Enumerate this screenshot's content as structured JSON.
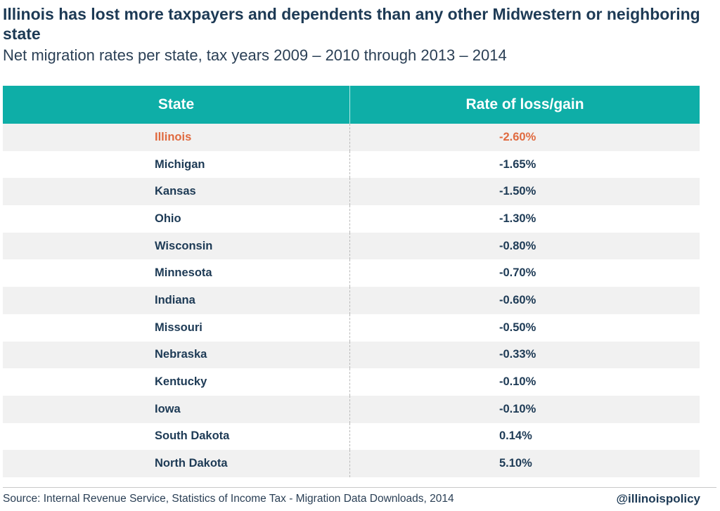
{
  "title": "Illinois has lost more taxpayers and dependents than any other Midwestern or neighboring state",
  "subtitle": "Net migration rates per state, tax years 2009 – 2010 through 2013 – 2014",
  "colors": {
    "header_bg": "#0eaea7",
    "highlight": "#e06a3f",
    "text": "#1d3a55"
  },
  "chart_data": {
    "type": "table",
    "title": "Illinois has lost more taxpayers and dependents than any other Midwestern or neighboring state",
    "subtitle": "Net migration rates per state, tax years 2009 – 2010 through 2013 – 2014",
    "columns": [
      "State",
      "Rate of loss/gain"
    ],
    "rows": [
      {
        "state": "Illinois",
        "rate": "-2.60%",
        "value": -2.6,
        "highlight": true
      },
      {
        "state": "Michigan",
        "rate": "-1.65%",
        "value": -1.65
      },
      {
        "state": "Kansas",
        "rate": "-1.50%",
        "value": -1.5
      },
      {
        "state": "Ohio",
        "rate": "-1.30%",
        "value": -1.3
      },
      {
        "state": "Wisconsin",
        "rate": "-0.80%",
        "value": -0.8
      },
      {
        "state": "Minnesota",
        "rate": "-0.70%",
        "value": -0.7
      },
      {
        "state": "Indiana",
        "rate": "-0.60%",
        "value": -0.6
      },
      {
        "state": "Missouri",
        "rate": "-0.50%",
        "value": -0.5
      },
      {
        "state": "Nebraska",
        "rate": "-0.33%",
        "value": -0.33
      },
      {
        "state": "Kentucky",
        "rate": "-0.10%",
        "value": -0.1
      },
      {
        "state": "Iowa",
        "rate": "-0.10%",
        "value": -0.1
      },
      {
        "state": "South Dakota",
        "rate": "0.14%",
        "value": 0.14
      },
      {
        "state": "North Dakota",
        "rate": "5.10%",
        "value": 5.1
      }
    ]
  },
  "footer": {
    "source": "Source: Internal Revenue Service, Statistics of Income Tax - Migration Data Downloads, 2014",
    "handle": "@illinoispolicy"
  }
}
